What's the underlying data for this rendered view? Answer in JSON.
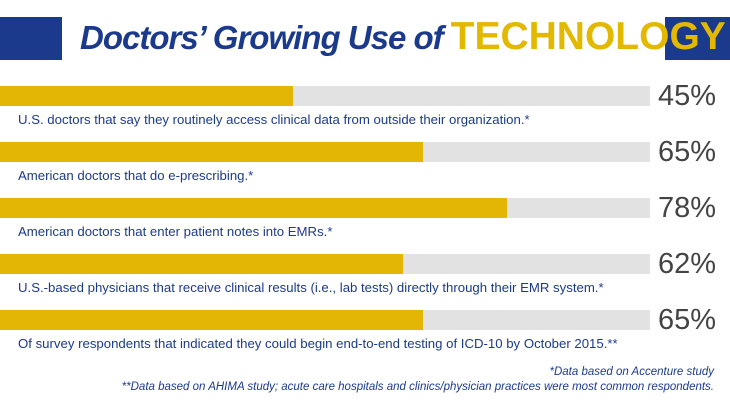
{
  "title": {
    "main": "Doctors’ Growing Use of",
    "accent": "TECHNOLOGY"
  },
  "colors": {
    "brand_blue": "#1c3a8c",
    "bar_fill": "#e3b505",
    "bar_track": "#e2e2e2"
  },
  "chart_data": {
    "type": "bar",
    "orientation": "horizontal",
    "ylim": [
      0,
      100
    ],
    "categories": [
      "U.S. doctors that say they routinely access clinical data from outside their organization.*",
      "American doctors that do e-prescribing.*",
      "American doctors that enter patient notes into EMRs.*",
      "U.S.-based physicians that receive clinical results (i.e., lab tests) directly through their EMR system.*",
      "Of survey respondents that indicated they could begin end-to-end testing of ICD-10 by October 2015.**"
    ],
    "values": [
      45,
      65,
      78,
      62,
      65
    ],
    "value_labels": [
      "45%",
      "65%",
      "78%",
      "62%",
      "65%"
    ]
  },
  "footnotes": {
    "note1": "*Data based on Accenture study",
    "note2": "**Data based on AHIMA study; acute care hospitals and clinics/physician practices were most common respondents."
  }
}
